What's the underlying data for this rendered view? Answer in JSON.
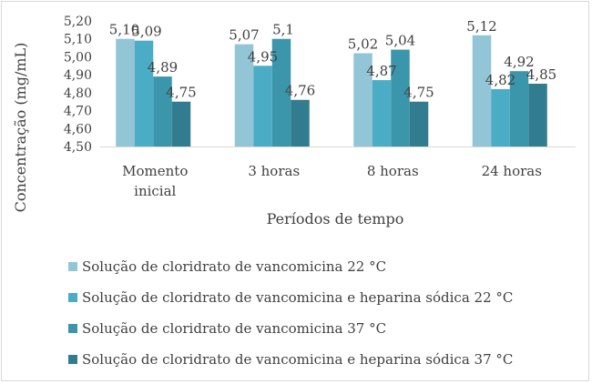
{
  "chart_data": {
    "type": "bar",
    "xlabel": "Períodos de tempo",
    "ylabel": "Concentração (mg/mL)",
    "ylim": [
      4.5,
      5.2
    ],
    "yticks": [
      "4,50",
      "4,60",
      "4,70",
      "4,80",
      "4,90",
      "5,00",
      "5,10",
      "5,20"
    ],
    "categories": [
      [
        "Momento",
        "inicial"
      ],
      [
        "3 horas"
      ],
      [
        "8 horas"
      ],
      [
        "24 horas"
      ]
    ],
    "grid": false,
    "legend": "bottom",
    "series": [
      {
        "name": "Solução de cloridrato de vancomicina 22 °C",
        "color": "#92c5d6",
        "values": [
          5.1,
          5.07,
          5.02,
          5.12
        ],
        "labels": [
          "5,10",
          "5,07",
          "5,02",
          "5,12"
        ]
      },
      {
        "name": "Solução de cloridrato de vancomicina e heparina sódica 22 °C",
        "color": "#4bacc6",
        "values": [
          5.09,
          4.95,
          4.87,
          4.82
        ],
        "labels": [
          "5,09",
          "4,95",
          "4,87",
          "4,82"
        ]
      },
      {
        "name": "Solução de cloridrato de vancomicina 37 °C",
        "color": "#3b96ab",
        "values": [
          4.89,
          5.1,
          5.04,
          4.92
        ],
        "labels": [
          "4,89",
          "5,1",
          "5,04",
          "4,92"
        ]
      },
      {
        "name": "Solução de cloridrato de vancomicina e heparina sódica 37 °C",
        "color": "#317d8f",
        "values": [
          4.75,
          4.76,
          4.75,
          4.85
        ],
        "labels": [
          "4,75",
          "4,76",
          "4,75",
          "4,85"
        ]
      }
    ]
  }
}
